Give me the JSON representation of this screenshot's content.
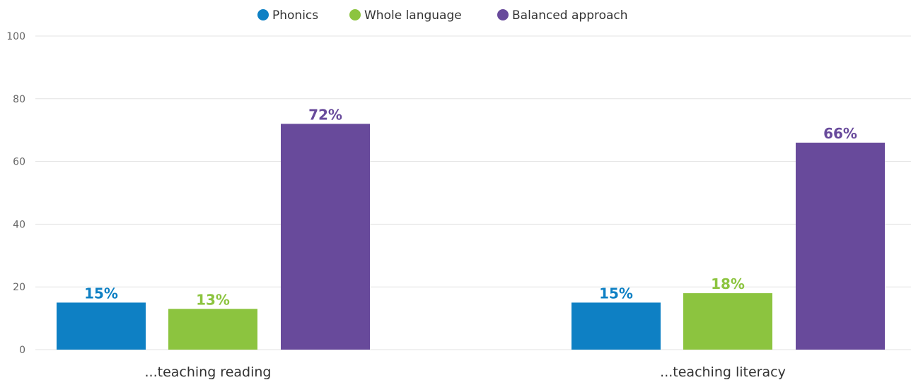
{
  "chart_data": {
    "type": "bar",
    "categories": [
      "...teaching reading",
      "...teaching literacy"
    ],
    "series": [
      {
        "name": "Phonics",
        "values": [
          15,
          15
        ],
        "color": "#0e80c4",
        "labels": [
          "15%",
          "15%"
        ]
      },
      {
        "name": "Whole language",
        "values": [
          13,
          18
        ],
        "color": "#8cc43f",
        "labels": [
          "13%",
          "18%"
        ]
      },
      {
        "name": "Balanced approach",
        "values": [
          72,
          66
        ],
        "color": "#684a9b",
        "labels": [
          "72%",
          "66%"
        ]
      }
    ],
    "ylim": [
      0,
      100
    ],
    "yticks": [
      0,
      20,
      40,
      60,
      80,
      100
    ],
    "grid": true,
    "legend_position": "top-center",
    "title": "",
    "xlabel": "",
    "ylabel": ""
  }
}
